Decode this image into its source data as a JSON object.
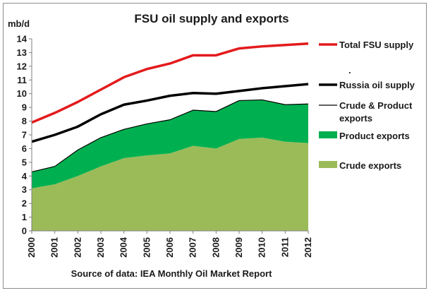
{
  "chart_data": {
    "type": "area",
    "title": "FSU oil supply and exports",
    "ylabel": "mb/d",
    "source": "Source of data: IEA Monthly Oil Market Report",
    "x": [
      "2000",
      "2001",
      "2002",
      "2003",
      "2004",
      "2005",
      "2006",
      "2007",
      "2008",
      "2009",
      "2010",
      "2011",
      "2012"
    ],
    "ylim": [
      0,
      14
    ],
    "yticks": [
      "0",
      "1",
      "2",
      "3",
      "4",
      "5",
      "6",
      "7",
      "8",
      "9",
      "10",
      "11",
      "12",
      "13",
      "14"
    ],
    "grid": false,
    "legend_position": "right",
    "series": [
      {
        "name": "Total FSU supply",
        "kind": "line",
        "color": "#e31a1c",
        "values": [
          7.9,
          8.6,
          9.4,
          10.3,
          11.2,
          11.8,
          12.2,
          12.8,
          12.8,
          13.3,
          13.45,
          13.55,
          13.65
        ]
      },
      {
        "name": "Russia oil supply",
        "kind": "line",
        "color": "#000000",
        "values": [
          6.5,
          7.0,
          7.6,
          8.5,
          9.2,
          9.5,
          9.85,
          10.05,
          10.0,
          10.2,
          10.4,
          10.55,
          10.7
        ]
      },
      {
        "name": "Crude & Product exports",
        "kind": "line",
        "color": "#000000",
        "values": [
          4.3,
          4.7,
          5.9,
          6.8,
          7.4,
          7.8,
          8.1,
          8.8,
          8.7,
          9.5,
          9.55,
          9.2,
          9.25
        ]
      },
      {
        "name": "Product exports",
        "kind": "area",
        "color": "#00b050",
        "values": [
          1.2,
          1.3,
          1.9,
          2.1,
          2.1,
          2.3,
          2.45,
          2.6,
          2.7,
          2.8,
          2.75,
          2.7,
          2.85
        ]
      },
      {
        "name": "Crude exports",
        "kind": "area",
        "color": "#9bbb59",
        "values": [
          3.1,
          3.4,
          4.0,
          4.7,
          5.3,
          5.5,
          5.65,
          6.2,
          6.0,
          6.7,
          6.8,
          6.5,
          6.4
        ]
      }
    ],
    "legend_extra_mark": "."
  }
}
